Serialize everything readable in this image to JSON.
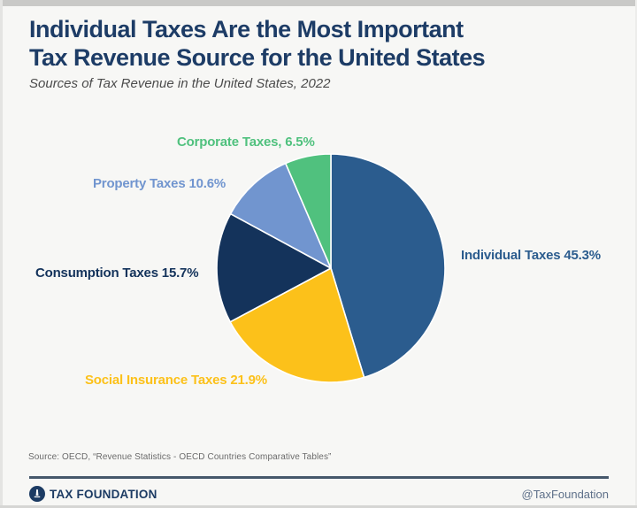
{
  "header": {
    "title_line1": "Individual Taxes Are the Most Important",
    "title_line2": "Tax Revenue Source for the United States",
    "subtitle": "Sources of Tax Revenue in the United States, 2022"
  },
  "chart_data": {
    "type": "pie",
    "title": "Individual Taxes Are the Most Important Tax Revenue Source for the United States",
    "subtitle": "Sources of Tax Revenue in the United States, 2022",
    "start_angle": "12 o'clock, clockwise",
    "units": "percent of total tax revenue",
    "slices": [
      {
        "label": "Individual Taxes",
        "value": 45.3,
        "display": "Individual Taxes 45.3%",
        "color": "#2B5C8E"
      },
      {
        "label": "Social Insurance Taxes",
        "value": 21.9,
        "display": "Social Insurance Taxes 21.9%",
        "color": "#FCC11A"
      },
      {
        "label": "Consumption Taxes",
        "value": 15.7,
        "display": "Consumption Taxes 15.7%",
        "color": "#14335B"
      },
      {
        "label": "Property Taxes",
        "value": 10.6,
        "display": "Property Taxes 10.6%",
        "color": "#7195CF"
      },
      {
        "label": "Corporate Taxes",
        "value": 6.5,
        "display": "Corporate Taxes, 6.5%",
        "color": "#50C17E"
      }
    ]
  },
  "source_note": "Source: OECD, “Revenue Statistics - OECD Countries Comparative Tables”",
  "footer": {
    "brand": "TAX FOUNDATION",
    "handle": "@TaxFoundation",
    "logo_icon": "tax-foundation-logo"
  },
  "colors": {
    "title": "#1D3C66",
    "subtitle": "#4C4C4C",
    "background": "#F7F7F5",
    "divider": "#46586B",
    "slice_stroke": "#FFFFFF"
  }
}
